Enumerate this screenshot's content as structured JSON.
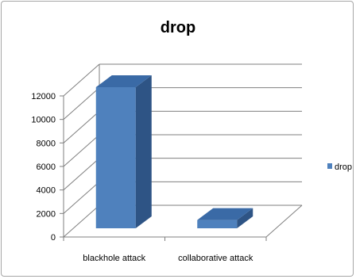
{
  "chart_data": {
    "type": "bar",
    "title": "drop",
    "categories": [
      "blackhole attack",
      "collaborative attack"
    ],
    "series": [
      {
        "name": "drop",
        "values": [
          12000,
          700
        ]
      }
    ],
    "yticks": [
      "0",
      "2000",
      "4000",
      "6000",
      "8000",
      "10000",
      "12000"
    ],
    "ylim": [
      0,
      12000
    ],
    "grid": true,
    "legend": "right",
    "style": "3d-column",
    "colors": {
      "front": "#4f81bd",
      "side": "#2e5485",
      "top": "#3a6aa6",
      "grid": "#7f7f7f"
    }
  }
}
